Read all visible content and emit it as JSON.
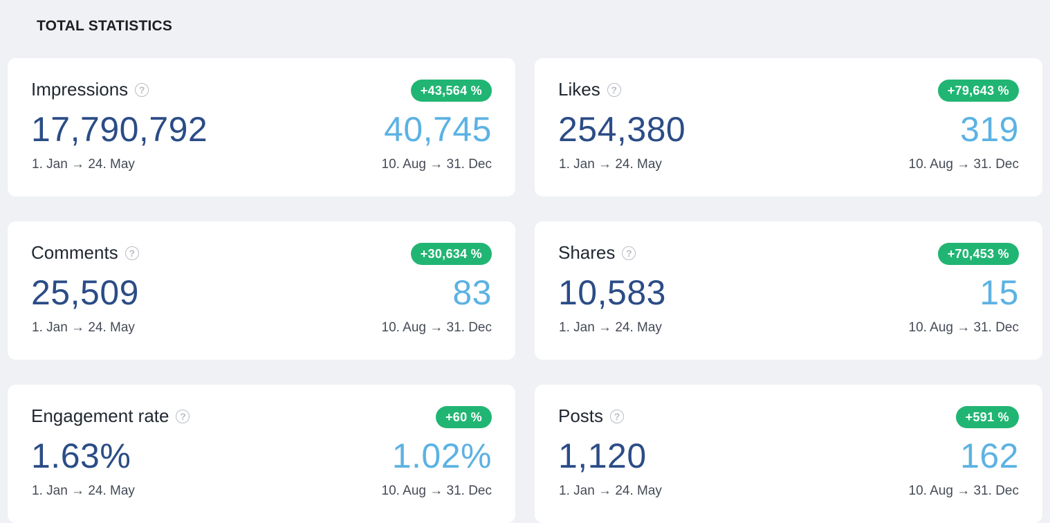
{
  "section_title": "TOTAL STATISTICS",
  "help_icon_glyph": "?",
  "colors": {
    "main_value": "#2b4c86",
    "compare_value": "#5cb2e3",
    "badge_bg": "#21b573",
    "background": "#f0f1f5"
  },
  "cards": [
    {
      "title": "Impressions",
      "change": "+43,564 %",
      "value": "17,790,792",
      "compare_value": "40,745",
      "range": "1. Jan → 24. May",
      "compare_range": "10. Aug → 31. Dec"
    },
    {
      "title": "Likes",
      "change": "+79,643 %",
      "value": "254,380",
      "compare_value": "319",
      "range": "1. Jan → 24. May",
      "compare_range": "10. Aug → 31. Dec"
    },
    {
      "title": "Comments",
      "change": "+30,634 %",
      "value": "25,509",
      "compare_value": "83",
      "range": "1. Jan → 24. May",
      "compare_range": "10. Aug → 31. Dec"
    },
    {
      "title": "Shares",
      "change": "+70,453 %",
      "value": "10,583",
      "compare_value": "15",
      "range": "1. Jan → 24. May",
      "compare_range": "10. Aug → 31. Dec"
    },
    {
      "title": "Engagement rate",
      "change": "+60 %",
      "value": "1.63%",
      "compare_value": "1.02%",
      "range": "1. Jan → 24. May",
      "compare_range": "10. Aug → 31. Dec"
    },
    {
      "title": "Posts",
      "change": "+591 %",
      "value": "1,120",
      "compare_value": "162",
      "range": "1. Jan → 24. May",
      "compare_range": "10. Aug → 31. Dec"
    }
  ]
}
